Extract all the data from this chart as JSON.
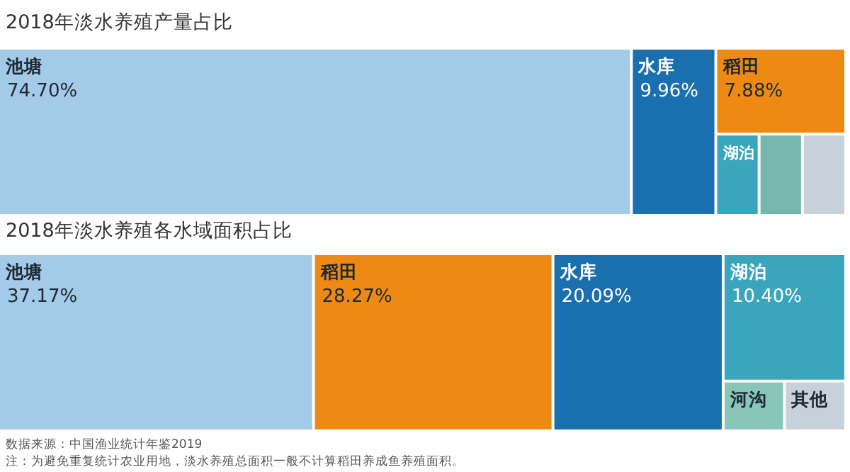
{
  "chart_data": [
    {
      "type": "other",
      "title": "2018年淡水养殖产量占比",
      "categories": [
        "池塘",
        "水库",
        "稻田",
        "湖泊",
        null,
        null
      ],
      "values": [
        74.7,
        9.96,
        7.88,
        null,
        null,
        null
      ],
      "value_labels": [
        "74.70%",
        "9.96%",
        "7.88%",
        null,
        null,
        null
      ],
      "colors": [
        "#a3cae7",
        "#1a6fae",
        "#ee8a14",
        "#3aa6bd",
        "#76b7ad",
        "#c7d1da"
      ]
    },
    {
      "type": "other",
      "title": "2018年淡水养殖各水域面积占比",
      "categories": [
        "池塘",
        "稻田",
        "水库",
        "湖泊",
        "河沟",
        "其他"
      ],
      "values": [
        37.17,
        28.27,
        20.09,
        10.4,
        null,
        null
      ],
      "value_labels": [
        "37.17%",
        "28.27%",
        "20.09%",
        "10.40%",
        null,
        null
      ],
      "colors": [
        "#a3cae7",
        "#ee8a14",
        "#1a6fae",
        "#3aa6bd",
        "#88c6b9",
        "#c7d1da"
      ],
      "annotations": [
        "数据来源：中国渔业统计年鉴2019",
        "注：为避免重复统计农业用地，淡水养殖总面积一般不计算稻田养成鱼养殖面积。"
      ]
    }
  ]
}
